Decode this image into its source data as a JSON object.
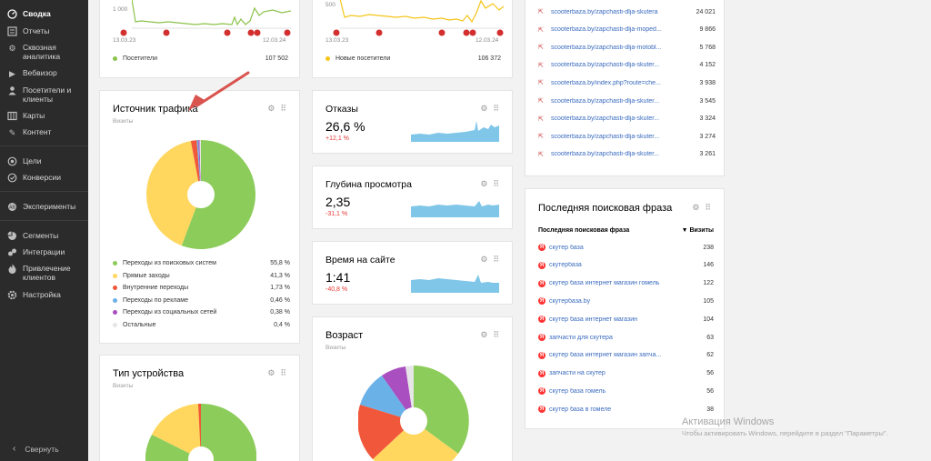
{
  "sidebar": {
    "items": [
      {
        "label": "Сводка",
        "icon": "dashboard-icon",
        "active": true
      },
      {
        "label": "Отчеты",
        "icon": "list-icon"
      },
      {
        "label": "Сквозная аналитика",
        "icon": "gear-icon"
      },
      {
        "label": "Вебвизор",
        "icon": "play-icon"
      },
      {
        "label": "Посетители и клиенты",
        "icon": "person-icon"
      },
      {
        "label": "Карты",
        "icon": "map-icon"
      },
      {
        "label": "Контент",
        "icon": "pencil-icon"
      },
      {
        "label": "Цели",
        "icon": "target-icon"
      },
      {
        "label": "Конверсии",
        "icon": "conversion-icon"
      },
      {
        "label": "Эксперименты",
        "icon": "flask-icon"
      },
      {
        "label": "Сегменты",
        "icon": "pie-icon"
      },
      {
        "label": "Интеграции",
        "icon": "plug-icon"
      },
      {
        "label": "Привлечение клиентов",
        "icon": "flame-icon"
      },
      {
        "label": "Настройка",
        "icon": "settings-icon"
      }
    ],
    "collapse_label": "Свернуть"
  },
  "visitors_card": {
    "y_tick": "1 000",
    "date_start": "13.03.23",
    "date_end": "12.03.24",
    "series_label": "Посетители",
    "total": "107 502",
    "series_color": "#8bc34a"
  },
  "new_visitors_card": {
    "y_tick": "500",
    "date_start": "13.03.23",
    "date_end": "12.03.24",
    "series_label": "Новые посетители",
    "total": "106 372",
    "series_color": "#f5c518"
  },
  "traffic_source": {
    "title": "Источник трафика",
    "subtitle": "Визиты",
    "chart_data": {
      "type": "pie",
      "title": "Источник трафика",
      "slices": [
        {
          "label": "Переходы из поисковых систем",
          "value": 55.8,
          "display": "55,8 %",
          "color": "#8ccc5a"
        },
        {
          "label": "Прямые заходы",
          "value": 41.3,
          "display": "41,3 %",
          "color": "#ffd75e"
        },
        {
          "label": "Внутренние переходы",
          "value": 1.73,
          "display": "1,73 %",
          "color": "#f1583b"
        },
        {
          "label": "Переходы по рекламе",
          "value": 0.46,
          "display": "0,46 %",
          "color": "#6ab1e8"
        },
        {
          "label": "Переходы из социальных сетей",
          "value": 0.38,
          "display": "0,38 %",
          "color": "#a94fbf"
        },
        {
          "label": "Остальные",
          "value": 0.4,
          "display": "0,4 %",
          "color": "#e6e6e6"
        }
      ]
    }
  },
  "device_type": {
    "title": "Тип устройства",
    "subtitle": "Визиты"
  },
  "metrics": [
    {
      "title": "Отказы",
      "value": "26,6 %",
      "delta": "+12,1 %"
    },
    {
      "title": "Глубина просмотра",
      "value": "2,35",
      "delta": "-31,1 %"
    },
    {
      "title": "Время на сайте",
      "value": "1:41",
      "delta": "-40,8 %"
    }
  ],
  "age": {
    "title": "Возраст",
    "subtitle": "Визиты"
  },
  "urls": [
    {
      "url": "scooterbaza.by/zapchasti-dlja-skutera",
      "value": "24 021"
    },
    {
      "url": "scooterbaza.by/zapchasti-dlja-moped...",
      "value": "9 866"
    },
    {
      "url": "scooterbaza.by/zapchasti-dlja-motobl...",
      "value": "5 768"
    },
    {
      "url": "scooterbaza.by/zapchasti-dlja-skuter...",
      "value": "4 152"
    },
    {
      "url": "scooterbaza.by/index.php?route=che...",
      "value": "3 938"
    },
    {
      "url": "scooterbaza.by/zapchasti-dlja-skuter...",
      "value": "3 545"
    },
    {
      "url": "scooterbaza.by/zapchasti-dlja-skuter...",
      "value": "3 324"
    },
    {
      "url": "scooterbaza.by/zapchasti-dlja-skuter...",
      "value": "3 274"
    },
    {
      "url": "scooterbaza.by/zapchasti-dlja-skuter...",
      "value": "3 261"
    }
  ],
  "last_phrase": {
    "title": "Последняя поисковая фраза",
    "col_phrase": "Последняя поисковая фраза",
    "col_visits": "▼ Визиты",
    "rows": [
      {
        "phrase": "скутер база",
        "value": "238"
      },
      {
        "phrase": "скутербаза",
        "value": "146"
      },
      {
        "phrase": "скутер база интернет магазин гомель",
        "value": "122"
      },
      {
        "phrase": "скутербаза.by",
        "value": "105"
      },
      {
        "phrase": "скутер база интернет магазин",
        "value": "104"
      },
      {
        "phrase": "запчасти для скутера",
        "value": "63"
      },
      {
        "phrase": "скутер база интернет магазин запча...",
        "value": "62"
      },
      {
        "phrase": "запчасти на скутер",
        "value": "56"
      },
      {
        "phrase": "скутер база гомель",
        "value": "56"
      },
      {
        "phrase": "скутер база в гомеле",
        "value": "38"
      }
    ]
  },
  "watermark": {
    "title": "Активация Windows",
    "text": "Чтобы активировать Windows, перейдите в раздел \"Параметры\"."
  }
}
